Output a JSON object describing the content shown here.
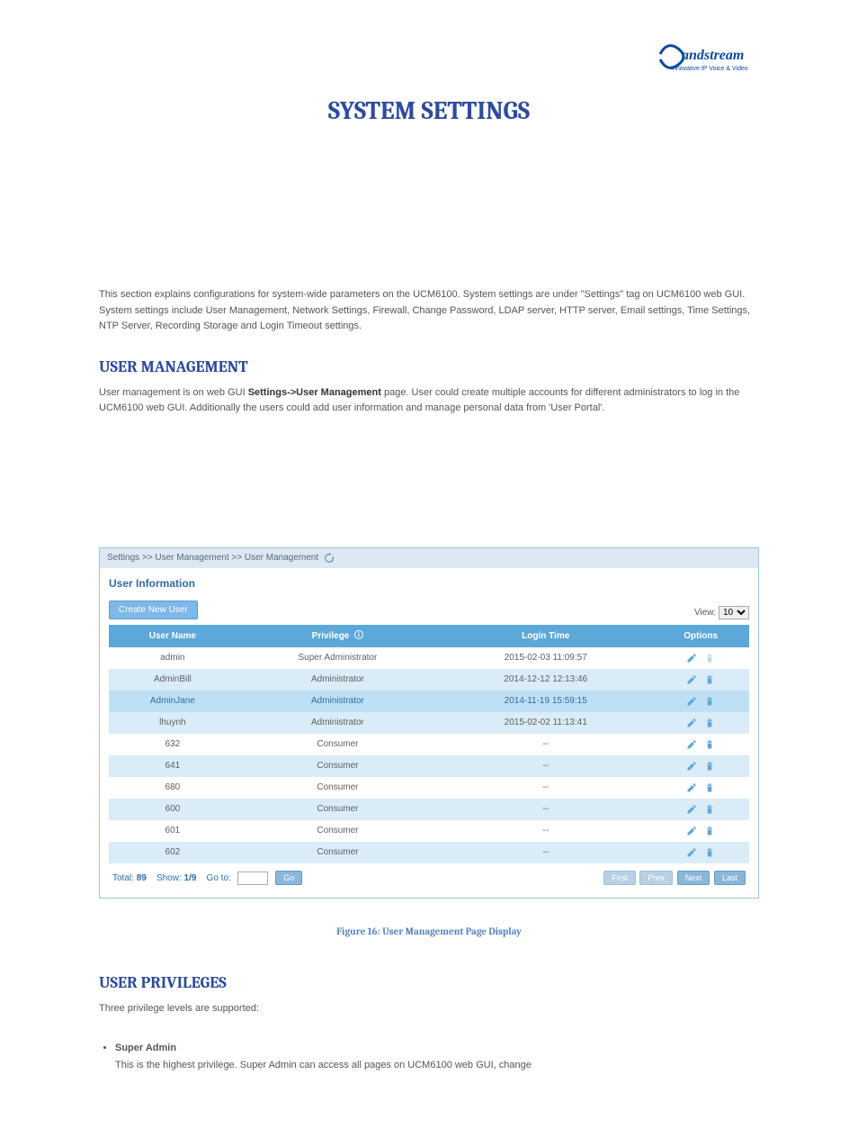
{
  "logo": {
    "text": "Grandstream",
    "sub": "Innovative IP Voice & Video"
  },
  "page_title": "SYSTEM SETTINGS",
  "intro": "This section explains configurations for system-wide parameters on the UCM6100. System settings are under \"Settings\" tag on UCM6100 web GUI. System settings include User Management, Network Settings, Firewall, Change Password, LDAP server, HTTP server, Email settings, Time Settings, NTP Server, Recording Storage and Login Timeout settings.",
  "um": {
    "heading": "USER MANAGEMENT",
    "body_pre": "User management is on web GUI ",
    "body_bold": "Settings->User Management",
    "body_post": " page. User could create multiple accounts for different administrators to log in the UCM6100 web GUI. Additionally the users could add user information and manage personal data from 'User Portal'.",
    "breadcrumb": "Settings >> User Management >> User Management",
    "panel_heading": "User Information",
    "create_label": "Create New User",
    "view_label": "View:",
    "view_value": "10",
    "columns": [
      "User Name",
      "Privilege",
      "Login Time",
      "Options"
    ],
    "info_tip": "i",
    "rows": [
      {
        "user": "admin",
        "priv": "Super Administrator",
        "login": "2015-02-03 11:09:57",
        "edit": true,
        "del": false,
        "hl": false
      },
      {
        "user": "AdminBill",
        "priv": "Administrator",
        "login": "2014-12-12 12:13:46",
        "edit": true,
        "del": true,
        "hl": false
      },
      {
        "user": "AdminJane",
        "priv": "Administrator",
        "login": "2014-11-19 15:59:15",
        "edit": true,
        "del": true,
        "hl": true
      },
      {
        "user": "lhuynh",
        "priv": "Administrator",
        "login": "2015-02-02 11:13:41",
        "edit": true,
        "del": true,
        "hl": false
      },
      {
        "user": "632",
        "priv": "Consumer",
        "login": "--",
        "edit": true,
        "del": true,
        "hl": false
      },
      {
        "user": "641",
        "priv": "Consumer",
        "login": "--",
        "edit": true,
        "del": true,
        "hl": false
      },
      {
        "user": "680",
        "priv": "Consumer",
        "login": "--",
        "edit": true,
        "del": true,
        "hl": false
      },
      {
        "user": "600",
        "priv": "Consumer",
        "login": "--",
        "edit": true,
        "del": true,
        "hl": false
      },
      {
        "user": "601",
        "priv": "Consumer",
        "login": "--",
        "edit": true,
        "del": true,
        "hl": false
      },
      {
        "user": "602",
        "priv": "Consumer",
        "login": "--",
        "edit": true,
        "del": true,
        "hl": false
      }
    ],
    "footer": {
      "total_lbl": "Total:",
      "total_val": "89",
      "show_lbl": "Show:",
      "show_val": "1/9",
      "goto_lbl": "Go to:",
      "go": "Go",
      "first": "First",
      "prev": "Prev",
      "next": "Next",
      "last": "Last"
    },
    "figure_caption": "Figure 16: User Management Page Display"
  },
  "up": {
    "heading": "USER PRIVILEGES",
    "intro": "Three privilege levels are supported:",
    "items": [
      {
        "title": "Super Admin",
        "line1": "This is the highest privilege. Super Admin can access all pages on UCM6100 web GUI, change"
      }
    ]
  }
}
